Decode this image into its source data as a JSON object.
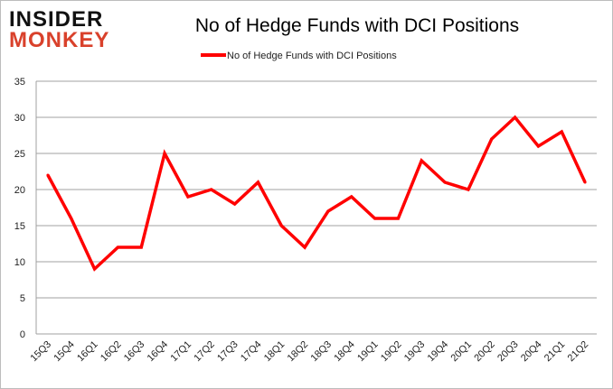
{
  "logo": {
    "line1": "INSIDER",
    "line2": "MONKEY"
  },
  "colors": {
    "series": "#ff0000",
    "logo_dark": "#111111",
    "logo_red": "#d9412b",
    "grid": "#a0a0a0"
  },
  "chart_data": {
    "type": "line",
    "title": "No of Hedge Funds with DCI Positions",
    "xlabel": "",
    "ylabel": "",
    "categories": [
      "15Q3",
      "15Q4",
      "16Q1",
      "16Q2",
      "16Q3",
      "16Q4",
      "17Q1",
      "17Q2",
      "17Q3",
      "17Q4",
      "18Q1",
      "18Q2",
      "18Q3",
      "18Q4",
      "19Q1",
      "19Q2",
      "19Q3",
      "19Q4",
      "20Q1",
      "20Q2",
      "20Q3",
      "20Q4",
      "21Q1",
      "21Q2"
    ],
    "series": [
      {
        "name": "No of Hedge Funds with DCI Positions",
        "values": [
          22,
          16,
          9,
          12,
          12,
          25,
          19,
          20,
          18,
          21,
          15,
          12,
          17,
          19,
          16,
          16,
          24,
          21,
          20,
          27,
          30,
          26,
          28,
          21
        ]
      }
    ],
    "ylim": [
      0,
      35
    ],
    "yticks": [
      0,
      5,
      10,
      15,
      20,
      25,
      30,
      35
    ],
    "grid": true,
    "legend": "top-center"
  }
}
